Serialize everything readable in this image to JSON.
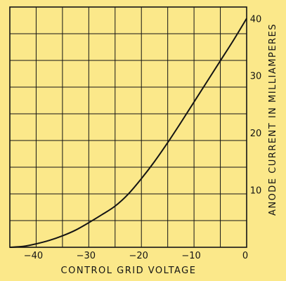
{
  "chart_data": {
    "type": "line",
    "title": "",
    "xlabel": "CONTROL  GRID  VOLTAGE",
    "ylabel": "ANODE  CURRENT  IN  MILLIAMPERES",
    "xlim": [
      -45,
      0
    ],
    "ylim": [
      0,
      42
    ],
    "x_ticks": [
      -40,
      -30,
      -20,
      -10,
      0
    ],
    "x_tick_labels": [
      "−40",
      "−30",
      "−20",
      "−10",
      "0"
    ],
    "y_ticks": [
      10,
      20,
      30,
      40
    ],
    "y_tick_labels": [
      "10",
      "20",
      "30",
      "40"
    ],
    "grid": true,
    "legend": "none",
    "series": [
      {
        "x": [
          -45,
          -42.5,
          -40,
          -37.5,
          -35,
          -32.5,
          -30,
          -27.5,
          -25,
          -22.5,
          -20,
          -17.5,
          -15,
          -12.5,
          -10,
          -7.5,
          -5,
          -2.5,
          0
        ],
        "y": [
          0,
          0.15,
          0.6,
          1.2,
          2,
          3,
          4.3,
          5.7,
          7.2,
          9.3,
          12,
          15,
          18.3,
          21.8,
          25.4,
          29,
          32.6,
          36.2,
          40
        ]
      }
    ],
    "colors": {
      "background": "#fbe88a",
      "ink": "#141414"
    }
  }
}
